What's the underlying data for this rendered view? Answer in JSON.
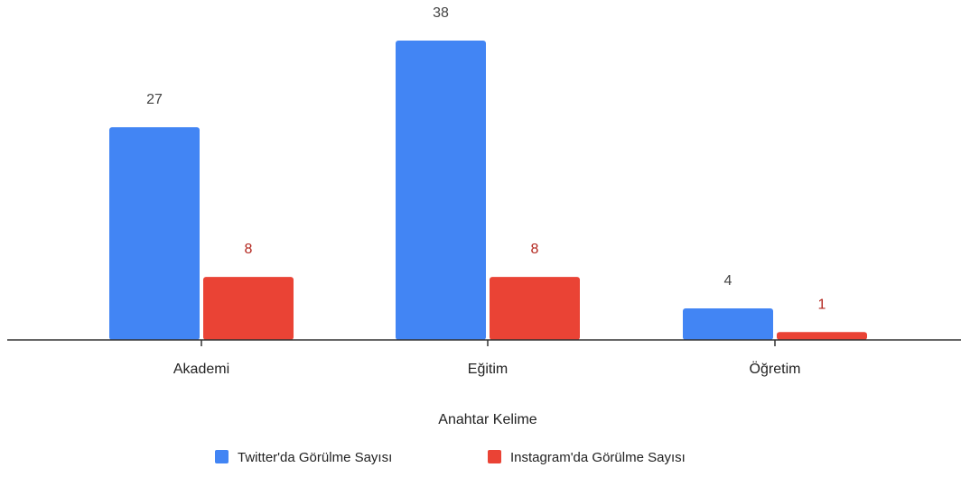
{
  "chart_data": {
    "type": "bar",
    "categories": [
      "Akademi",
      "Eğitim",
      "Öğretim"
    ],
    "series": [
      {
        "name": "Twitter'da Görülme Sayısı",
        "values": [
          27,
          38,
          4
        ],
        "color": "#4285f4",
        "label_color": "#444444"
      },
      {
        "name": "Instagram'da Görülme Sayısı",
        "values": [
          8,
          8,
          1
        ],
        "color": "#ea4335",
        "label_color": "#b3261e"
      }
    ],
    "xlabel": "Anahtar Kelime",
    "ylabel": "",
    "ylim": [
      0,
      38
    ],
    "grid": false,
    "legend": "bottom",
    "data_labels": true
  }
}
